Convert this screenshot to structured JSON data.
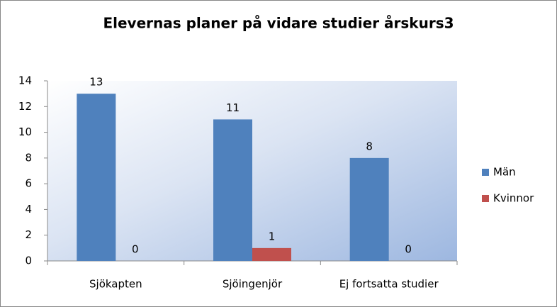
{
  "chart_data": {
    "type": "bar",
    "title": "Elevernas planer på vidare studier årskurs3",
    "categories": [
      "Sjökapten",
      "Sjöingenjör",
      "Ej fortsatta studier"
    ],
    "series": [
      {
        "name": "Män",
        "color": "#4f81bd",
        "values": [
          13,
          11,
          8
        ]
      },
      {
        "name": "Kvinnor",
        "color": "#c0504d",
        "values": [
          0,
          1,
          0
        ]
      }
    ],
    "ylim": [
      0,
      14
    ],
    "yticks": [
      0,
      2,
      4,
      6,
      8,
      10,
      12,
      14
    ],
    "grid": false,
    "legend": "right"
  }
}
